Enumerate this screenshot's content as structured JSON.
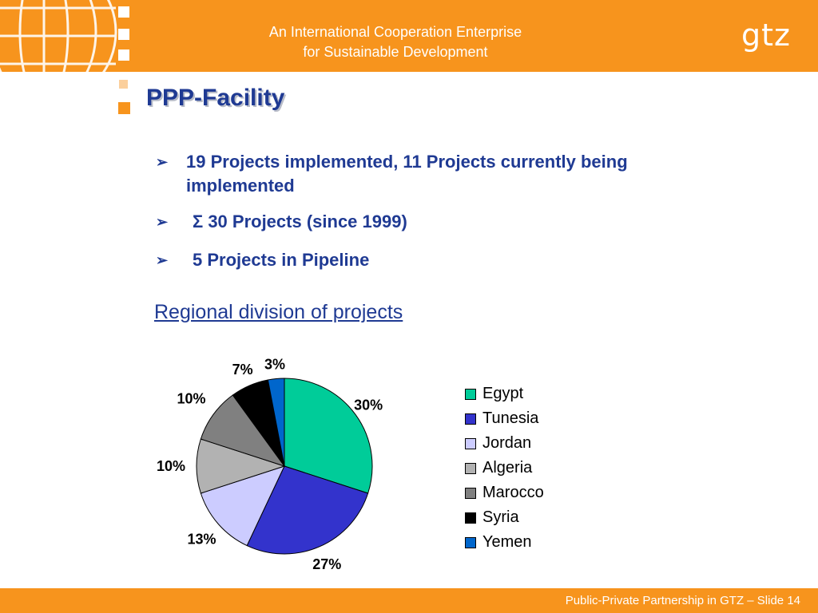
{
  "header": {
    "tagline_line1": "An International Cooperation Enterprise",
    "tagline_line2": "for Sustainable Development",
    "logo": "gtz"
  },
  "slide": {
    "title": "PPP-Facility",
    "bullets": [
      "19 Projects implemented, 11 Projects currently being implemented",
      "Σ 30 Projects (since 1999)",
      "5 Projects in Pipeline"
    ],
    "subtitle": "Regional division of projects"
  },
  "chart_data": {
    "type": "pie",
    "categories": [
      "Egypt",
      "Tunesia",
      "Jordan",
      "Algeria",
      "Marocco",
      "Syria",
      "Yemen"
    ],
    "values": [
      30,
      27,
      13,
      10,
      10,
      7,
      3
    ],
    "labels": [
      "30%",
      "27%",
      "13%",
      "10%",
      "10%",
      "7%",
      "3%"
    ],
    "colors": [
      "#00cc99",
      "#3333cc",
      "#ccccff",
      "#b2b2b2",
      "#808080",
      "#000000",
      "#0066cc"
    ],
    "legend_position": "right"
  },
  "footer": {
    "text": "Public-Private Partnership in GTZ – Slide 14"
  }
}
